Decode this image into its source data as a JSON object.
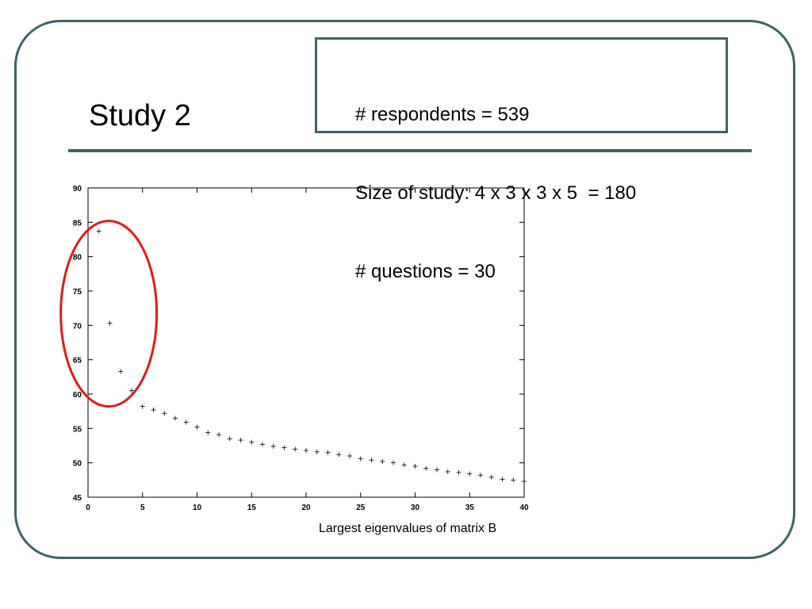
{
  "slide": {
    "title": "Study 2",
    "info_lines": [
      "# respondents = 539",
      "Size of study: 4 x 3 x 3 x 5  = 180",
      "# questions = 30"
    ],
    "caption": "Largest eigenvalues of matrix B",
    "frame_color": "#3d6468",
    "highlight_color": "#e01b1b"
  },
  "chart_data": {
    "type": "scatter",
    "title": "",
    "xlabel": "",
    "ylabel": "",
    "xlim": [
      0,
      40
    ],
    "ylim": [
      45,
      90
    ],
    "xticks": [
      0,
      5,
      10,
      15,
      20,
      25,
      30,
      35,
      40
    ],
    "yticks": [
      45,
      50,
      55,
      60,
      65,
      70,
      75,
      80,
      85,
      90
    ],
    "grid": false,
    "marker": "+",
    "points": [
      {
        "x": 1,
        "y": 83.7
      },
      {
        "x": 2,
        "y": 70.3
      },
      {
        "x": 3,
        "y": 63.3
      },
      {
        "x": 4,
        "y": 60.5
      },
      {
        "x": 5,
        "y": 58.2
      },
      {
        "x": 6,
        "y": 57.7
      },
      {
        "x": 7,
        "y": 57.2
      },
      {
        "x": 8,
        "y": 56.5
      },
      {
        "x": 9,
        "y": 55.9
      },
      {
        "x": 10,
        "y": 55.2
      },
      {
        "x": 11,
        "y": 54.4
      },
      {
        "x": 12,
        "y": 54.1
      },
      {
        "x": 13,
        "y": 53.5
      },
      {
        "x": 14,
        "y": 53.3
      },
      {
        "x": 15,
        "y": 53.0
      },
      {
        "x": 16,
        "y": 52.7
      },
      {
        "x": 17,
        "y": 52.4
      },
      {
        "x": 18,
        "y": 52.2
      },
      {
        "x": 19,
        "y": 52.0
      },
      {
        "x": 20,
        "y": 51.8
      },
      {
        "x": 21,
        "y": 51.6
      },
      {
        "x": 22,
        "y": 51.5
      },
      {
        "x": 23,
        "y": 51.2
      },
      {
        "x": 24,
        "y": 51.0
      },
      {
        "x": 25,
        "y": 50.6
      },
      {
        "x": 26,
        "y": 50.4
      },
      {
        "x": 27,
        "y": 50.2
      },
      {
        "x": 28,
        "y": 50.0
      },
      {
        "x": 29,
        "y": 49.7
      },
      {
        "x": 30,
        "y": 49.5
      },
      {
        "x": 31,
        "y": 49.2
      },
      {
        "x": 32,
        "y": 49.0
      },
      {
        "x": 33,
        "y": 48.7
      },
      {
        "x": 34,
        "y": 48.6
      },
      {
        "x": 35,
        "y": 48.4
      },
      {
        "x": 36,
        "y": 48.2
      },
      {
        "x": 37,
        "y": 47.9
      },
      {
        "x": 38,
        "y": 47.6
      },
      {
        "x": 39,
        "y": 47.5
      },
      {
        "x": 40,
        "y": 47.3
      }
    ],
    "highlight_region": {
      "x_center": 1.9,
      "y_center": 71.7,
      "x_radius": 4.4,
      "y_radius": 13.5
    }
  }
}
